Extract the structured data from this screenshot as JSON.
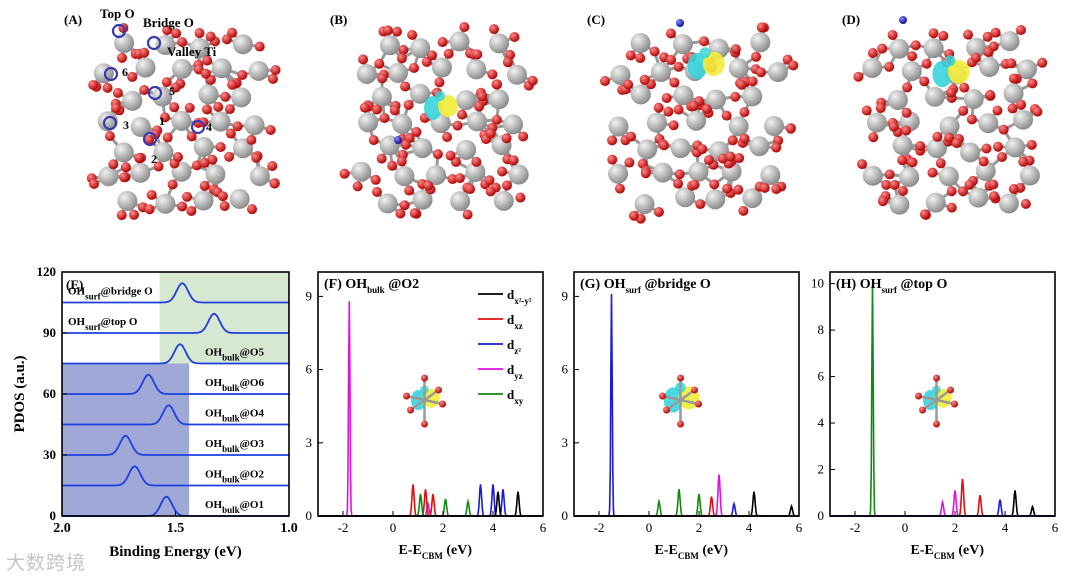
{
  "panels_top": [
    {
      "label": "(A)",
      "annotations": [
        "Top O",
        "Bridge O",
        "Valley Ti",
        "6",
        "5",
        "1",
        "3",
        "4",
        "2"
      ]
    },
    {
      "label": "(B)"
    },
    {
      "label": "(C)"
    },
    {
      "label": "(D)"
    }
  ],
  "colors": {
    "ti": "#b9b9b9",
    "o": "#e01010",
    "h": "#1a1ad8",
    "orb_yellow": "#f3ec3a",
    "orb_cyan": "#38d4dc",
    "blue_region": "#9fa8d6",
    "green_region": "#d6e8d2",
    "curve": "#1f3ee0"
  },
  "watermark": "大数跨境",
  "chart_data": [
    {
      "panel": "(E)",
      "type": "line",
      "ylabel": "PDOS (a.u.)",
      "xlabel": "Binding Energy (eV)",
      "xlim": [
        2.0,
        1.0
      ],
      "ylim": [
        0,
        120
      ],
      "xticks": [
        "2.0",
        "1.5",
        "1.0"
      ],
      "yticks": [
        "0",
        "30",
        "60",
        "90",
        "120"
      ],
      "series": [
        {
          "name": "OHbulk@O1",
          "label_main": "OH",
          "label_sub": "bulk",
          "label_rest": "@O1",
          "offset": 0,
          "peak": 1.54
        },
        {
          "name": "OHbulk@O2",
          "label_main": "OH",
          "label_sub": "bulk",
          "label_rest": "@O2",
          "offset": 15,
          "peak": 1.68
        },
        {
          "name": "OHbulk@O3",
          "label_main": "OH",
          "label_sub": "bulk",
          "label_rest": "@O3",
          "offset": 30,
          "peak": 1.72
        },
        {
          "name": "OHbulk@O4",
          "label_main": "OH",
          "label_sub": "bulk",
          "label_rest": "@O4",
          "offset": 45,
          "peak": 1.53
        },
        {
          "name": "OHbulk@O6",
          "label_main": "OH",
          "label_sub": "bulk",
          "label_rest": "@O6",
          "offset": 60,
          "peak": 1.62
        },
        {
          "name": "OHbulk@O5",
          "label_main": "OH",
          "label_sub": "bulk",
          "label_rest": "@O5",
          "offset": 75,
          "peak": 1.48
        },
        {
          "name": "OHsurf@top O",
          "label_main": "OH",
          "label_sub": "surf",
          "label_rest": "@top O",
          "offset": 90,
          "peak": 1.33
        },
        {
          "name": "OHsurf@bridge O",
          "label_main": "OH",
          "label_sub": "surf",
          "label_rest": "@bridge O",
          "offset": 105,
          "peak": 1.47
        }
      ],
      "peak_height": 9.5,
      "regions": [
        {
          "color": "blue",
          "x": [
            2.0,
            1.44
          ],
          "y": [
            0,
            75
          ]
        },
        {
          "color": "green",
          "x": [
            1.57,
            1.0
          ],
          "y": [
            75,
            120
          ]
        }
      ]
    },
    {
      "panel": "(F)",
      "type": "line",
      "title_main": "OH",
      "title_sub": "bulk",
      "title_rest": " @O2",
      "xlabel_main": "E-E",
      "xlabel_sub": "CBM",
      "xlabel_rest": " (eV)",
      "xlim": [
        -3,
        6
      ],
      "ylim": [
        0,
        10
      ],
      "xticks": [
        "-2",
        "0",
        "2",
        "4",
        "6"
      ],
      "yticks": [
        "0",
        "3",
        "6",
        "9"
      ],
      "legend": [
        {
          "name": "dx²-y²",
          "main": "d",
          "sub": "x²-y²",
          "color": "#000000"
        },
        {
          "name": "dxz",
          "main": "d",
          "sub": "xz",
          "color": "#e01010"
        },
        {
          "name": "dz²",
          "main": "d",
          "sub": "z²",
          "color": "#1a1ad8"
        },
        {
          "name": "dyz",
          "main": "d",
          "sub": "yz",
          "color": "#e012e0"
        },
        {
          "name": "dxy",
          "main": "d",
          "sub": "xy",
          "color": "#118a11"
        }
      ],
      "peaks": [
        {
          "series": "dyz",
          "x": -1.75,
          "y": 8.8
        },
        {
          "series": "dxz",
          "x": 0.8,
          "y": 1.3
        },
        {
          "series": "dxz",
          "x": 1.3,
          "y": 1.1
        },
        {
          "series": "dxz",
          "x": 1.6,
          "y": 0.9
        },
        {
          "series": "dxy",
          "x": 1.1,
          "y": 0.9
        },
        {
          "series": "dxy",
          "x": 2.1,
          "y": 0.7
        },
        {
          "series": "dyz",
          "x": 1.4,
          "y": 0.5
        },
        {
          "series": "dz²",
          "x": 3.5,
          "y": 1.3
        },
        {
          "series": "dz²",
          "x": 4.0,
          "y": 1.3
        },
        {
          "series": "dz²",
          "x": 4.4,
          "y": 1.1
        },
        {
          "series": "dx²-y²",
          "x": 4.2,
          "y": 1.0
        },
        {
          "series": "dx²-y²",
          "x": 5.0,
          "y": 1.0
        },
        {
          "series": "dxy",
          "x": 3.0,
          "y": 0.6
        }
      ]
    },
    {
      "panel": "(G)",
      "type": "line",
      "title_main": "OH",
      "title_sub": "surf",
      "title_rest": " @bridge O",
      "xlabel_main": "E-E",
      "xlabel_sub": "CBM",
      "xlabel_rest": " (eV)",
      "xlim": [
        -3,
        6
      ],
      "ylim": [
        0,
        10
      ],
      "xticks": [
        "-2",
        "0",
        "2",
        "4",
        "6"
      ],
      "yticks": [
        "0",
        "3",
        "6",
        "9"
      ],
      "peaks": [
        {
          "series": "dz²",
          "x": -1.5,
          "y": 9.1
        },
        {
          "series": "dyz",
          "x": 2.8,
          "y": 1.7
        },
        {
          "series": "dxy",
          "x": 1.2,
          "y": 1.1
        },
        {
          "series": "dxy",
          "x": 2.0,
          "y": 0.9
        },
        {
          "series": "dxz",
          "x": 2.5,
          "y": 0.8
        },
        {
          "series": "dx²-y²",
          "x": 4.2,
          "y": 1.0
        },
        {
          "series": "dz²",
          "x": 3.4,
          "y": 0.5
        },
        {
          "series": "dxy",
          "x": 0.4,
          "y": 0.6
        },
        {
          "series": "dx²-y²",
          "x": 5.7,
          "y": 0.4
        }
      ]
    },
    {
      "panel": "(H)",
      "type": "line",
      "title_main": "OH",
      "title_sub": "surf",
      "title_rest": " @top O",
      "xlabel_main": "E-E",
      "xlabel_sub": "CBM",
      "xlabel_rest": " (eV)",
      "xlim": [
        -3,
        6
      ],
      "ylim": [
        0,
        10.5
      ],
      "xticks": [
        "-2",
        "0",
        "2",
        "4",
        "6"
      ],
      "yticks": [
        "0",
        "2",
        "4",
        "6",
        "8",
        "10"
      ],
      "peaks": [
        {
          "series": "dxy",
          "x": -1.3,
          "y": 10.0
        },
        {
          "series": "dxz",
          "x": 2.3,
          "y": 1.6
        },
        {
          "series": "dyz",
          "x": 2.0,
          "y": 1.1
        },
        {
          "series": "dx²-y²",
          "x": 4.4,
          "y": 1.1
        },
        {
          "series": "dxz",
          "x": 3.0,
          "y": 0.9
        },
        {
          "series": "dz²",
          "x": 3.8,
          "y": 0.7
        },
        {
          "series": "dyz",
          "x": 1.5,
          "y": 0.6
        },
        {
          "series": "dx²-y²",
          "x": 5.1,
          "y": 0.4
        }
      ]
    }
  ]
}
